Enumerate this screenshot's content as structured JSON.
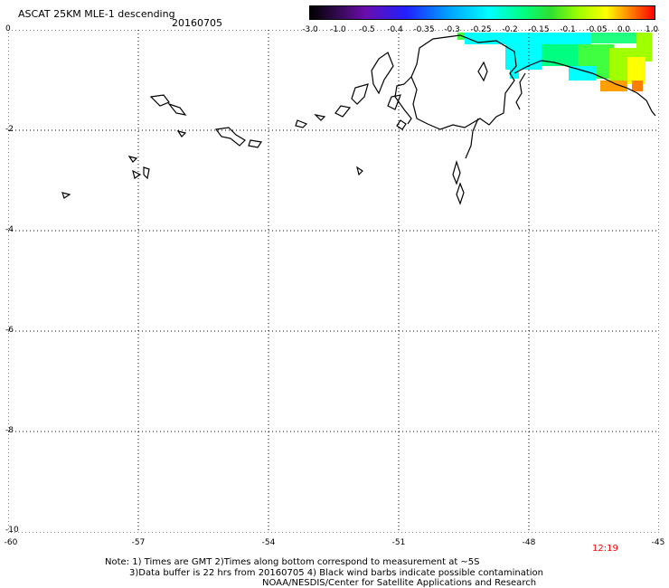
{
  "header": {
    "title": "ASCAT 25KM MLE-1 descending",
    "date": "20160705"
  },
  "colorbar": {
    "labels": [
      "-3.0",
      "-1.0",
      "-0.5",
      "-0.4",
      "-0.35",
      "-0.3",
      "-0.25",
      "-0.2",
      "-0.15",
      "-0.1",
      "-0.05",
      "0.0",
      "1.0"
    ],
    "colors": [
      "#000000",
      "#3a0a5a",
      "#6a0dad",
      "#2020ff",
      "#00a0ff",
      "#00ffff",
      "#00ff80",
      "#30e030",
      "#a0ff00",
      "#ffff00",
      "#ff8000",
      "#ff0000"
    ]
  },
  "axes": {
    "lat_labels": [
      "0",
      "-2",
      "-4",
      "-6",
      "-8",
      "-10"
    ],
    "lon_labels": [
      "-60",
      "-57",
      "-54",
      "-51",
      "-48",
      "-45"
    ],
    "grid": true,
    "grid_style": "dotted"
  },
  "timestamp": "12:19",
  "notes": {
    "line1": "Note: 1) Times are GMT 2)Times along bottom correspond to measurement at ~5S",
    "line2": "3)Data buffer is 22 hrs from 20160705 4) Black wind barbs indicate possible contamination",
    "line3": "NOAA/NESDIS/Center for Satellite Applications and Research"
  }
}
